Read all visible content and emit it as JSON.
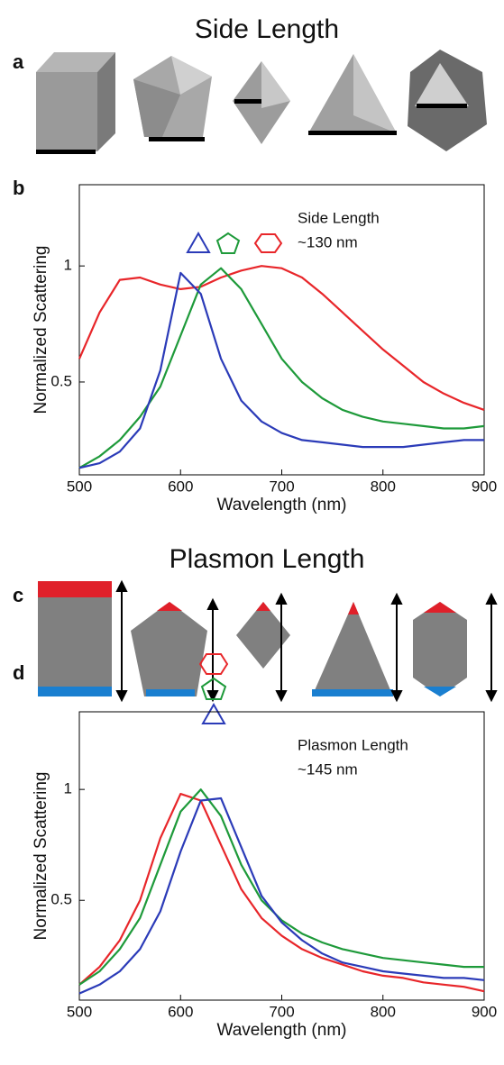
{
  "headings": [
    "Side Length",
    "Plasmon Length"
  ],
  "panel_labels": [
    "a",
    "b",
    "c",
    "d"
  ],
  "chart_data": [
    {
      "type": "line",
      "xlabel": "Wavelength (nm)",
      "ylabel": "Normalized Scattering",
      "annotation": [
        "Side Length",
        "~130 nm"
      ],
      "x": [
        500,
        520,
        540,
        560,
        580,
        600,
        620,
        640,
        660,
        680,
        700,
        720,
        740,
        760,
        780,
        800,
        820,
        840,
        860,
        880,
        900
      ],
      "series": [
        {
          "color": "#e8262a",
          "values": [
            0.6,
            0.8,
            0.94,
            0.95,
            0.92,
            0.9,
            0.91,
            0.95,
            0.98,
            1.0,
            0.99,
            0.95,
            0.88,
            0.8,
            0.72,
            0.64,
            0.57,
            0.5,
            0.45,
            0.41,
            0.38
          ]
        },
        {
          "color": "#1e9a3a",
          "values": [
            0.13,
            0.18,
            0.25,
            0.35,
            0.48,
            0.7,
            0.92,
            0.99,
            0.9,
            0.75,
            0.6,
            0.5,
            0.43,
            0.38,
            0.35,
            0.33,
            0.32,
            0.31,
            0.3,
            0.3,
            0.31
          ]
        },
        {
          "color": "#2b3bb8",
          "values": [
            0.13,
            0.15,
            0.2,
            0.3,
            0.55,
            0.97,
            0.88,
            0.6,
            0.42,
            0.33,
            0.28,
            0.25,
            0.24,
            0.23,
            0.22,
            0.22,
            0.22,
            0.23,
            0.24,
            0.25,
            0.25
          ]
        }
      ],
      "xlim": [
        500,
        900
      ],
      "xticks": [
        500,
        600,
        700,
        800,
        900
      ],
      "ylim": [
        0.1,
        1.35
      ],
      "yticks": [
        0.5,
        1
      ]
    },
    {
      "type": "line",
      "xlabel": "Wavelength (nm)",
      "ylabel": "Normalized Scattering",
      "annotation": [
        "Plasmon Length",
        "~145 nm"
      ],
      "x": [
        500,
        520,
        540,
        560,
        580,
        600,
        620,
        640,
        660,
        680,
        700,
        720,
        740,
        760,
        780,
        800,
        820,
        840,
        860,
        880,
        900
      ],
      "series": [
        {
          "color": "#e8262a",
          "values": [
            0.12,
            0.2,
            0.32,
            0.5,
            0.78,
            0.98,
            0.95,
            0.75,
            0.55,
            0.42,
            0.34,
            0.28,
            0.24,
            0.21,
            0.18,
            0.16,
            0.15,
            0.13,
            0.12,
            0.11,
            0.09
          ]
        },
        {
          "color": "#1e9a3a",
          "values": [
            0.12,
            0.18,
            0.28,
            0.42,
            0.66,
            0.9,
            1.0,
            0.88,
            0.66,
            0.5,
            0.41,
            0.35,
            0.31,
            0.28,
            0.26,
            0.24,
            0.23,
            0.22,
            0.21,
            0.2,
            0.2
          ]
        },
        {
          "color": "#2b3bb8",
          "values": [
            0.08,
            0.12,
            0.18,
            0.28,
            0.45,
            0.72,
            0.95,
            0.96,
            0.74,
            0.52,
            0.4,
            0.32,
            0.26,
            0.22,
            0.2,
            0.18,
            0.17,
            0.16,
            0.15,
            0.15,
            0.14
          ]
        }
      ],
      "xlim": [
        500,
        900
      ],
      "xticks": [
        500,
        600,
        700,
        800,
        900
      ],
      "ylim": [
        0.05,
        1.35
      ],
      "yticks": [
        0.5,
        1
      ]
    }
  ]
}
